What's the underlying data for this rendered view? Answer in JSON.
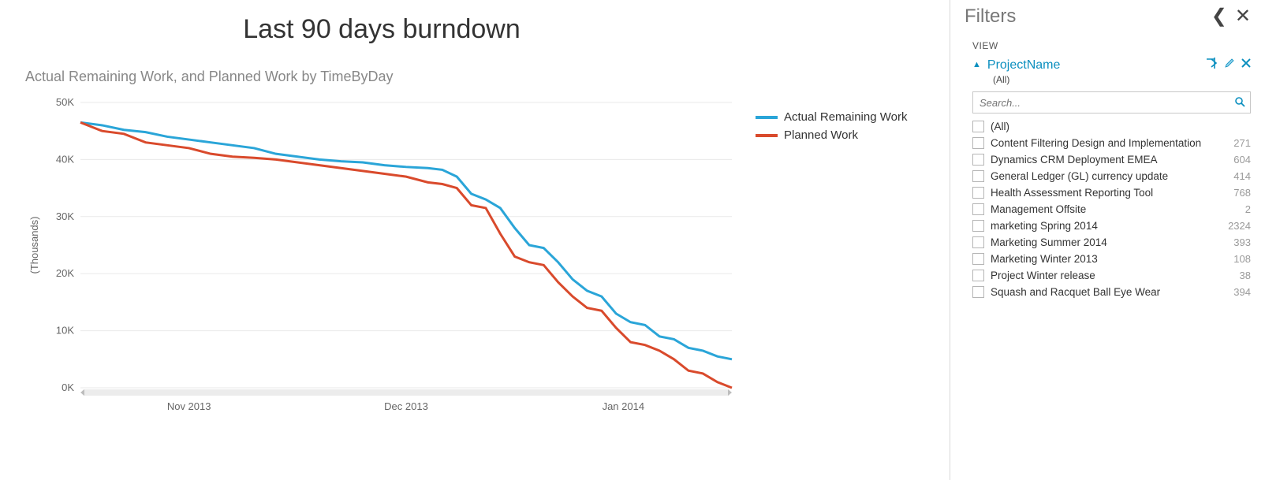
{
  "chart": {
    "type": "line",
    "title": "Last 90 days burndown",
    "subtitle": "Actual Remaining Work, and Planned Work by TimeByDay",
    "y_axis_title": "(Thousands)",
    "ylim": [
      0,
      50
    ],
    "yticks": [
      0,
      10,
      20,
      30,
      40,
      50
    ],
    "ytick_labels": [
      "0K",
      "10K",
      "20K",
      "30K",
      "40K",
      "50K"
    ],
    "x_tick_positions": [
      15,
      45,
      75
    ],
    "x_tick_labels": [
      "Nov 2013",
      "Dec 2013",
      "Jan 2014"
    ],
    "x_domain": [
      0,
      90
    ],
    "grid_color": "#e9e9e9",
    "background_color": "#ffffff",
    "line_width": 3,
    "axis_text_color": "#666666",
    "scrollbar_track_color": "#ececec",
    "series": [
      {
        "name": "Actual Remaining Work",
        "color": "#2aa5d8",
        "x": [
          0,
          3,
          6,
          9,
          12,
          15,
          18,
          21,
          24,
          27,
          30,
          33,
          36,
          39,
          42,
          45,
          48,
          50,
          52,
          54,
          56,
          58,
          60,
          62,
          64,
          66,
          68,
          70,
          72,
          74,
          76,
          78,
          80,
          82,
          84,
          86,
          88,
          90
        ],
        "y": [
          46.5,
          46.0,
          45.2,
          44.8,
          44.0,
          43.5,
          43.0,
          42.5,
          42.0,
          41.0,
          40.5,
          40.0,
          39.7,
          39.5,
          39.0,
          38.7,
          38.5,
          38.2,
          37.0,
          34.0,
          33.0,
          31.5,
          28.0,
          25.0,
          24.5,
          22.0,
          19.0,
          17.0,
          16.0,
          13.0,
          11.5,
          11.0,
          9.0,
          8.5,
          7.0,
          6.5,
          5.5,
          5.0
        ]
      },
      {
        "name": "Planned Work",
        "color": "#d94a2c",
        "x": [
          0,
          3,
          6,
          9,
          12,
          15,
          18,
          21,
          24,
          27,
          30,
          33,
          36,
          39,
          42,
          45,
          48,
          50,
          52,
          54,
          56,
          58,
          60,
          62,
          64,
          66,
          68,
          70,
          72,
          74,
          76,
          78,
          80,
          82,
          84,
          86,
          88,
          90
        ],
        "y": [
          46.5,
          45.0,
          44.5,
          43.0,
          42.5,
          42.0,
          41.0,
          40.5,
          40.3,
          40.0,
          39.5,
          39.0,
          38.5,
          38.0,
          37.5,
          37.0,
          36.0,
          35.7,
          35.0,
          32.0,
          31.5,
          27.0,
          23.0,
          22.0,
          21.5,
          18.5,
          16.0,
          14.0,
          13.5,
          10.5,
          8.0,
          7.5,
          6.5,
          5.0,
          3.0,
          2.5,
          1.0,
          0.0
        ]
      }
    ]
  },
  "legend": {
    "items": [
      "Actual Remaining Work",
      "Planned Work"
    ],
    "colors": [
      "#2aa5d8",
      "#d94a2c"
    ]
  },
  "filters": {
    "panel_title": "Filters",
    "view_label": "VIEW",
    "field_name": "ProjectName",
    "field_summary": "(All)",
    "search_placeholder": "Search...",
    "accent_color": "#0b8fbf",
    "options": [
      {
        "label": "(All)",
        "count": ""
      },
      {
        "label": "Content Filtering Design and Implementation",
        "count": "271"
      },
      {
        "label": "Dynamics CRM Deployment EMEA",
        "count": "604"
      },
      {
        "label": "General Ledger (GL) currency update",
        "count": "414"
      },
      {
        "label": "Health Assessment Reporting Tool",
        "count": "768"
      },
      {
        "label": "Management Offsite",
        "count": "2"
      },
      {
        "label": "marketing Spring 2014",
        "count": "2324"
      },
      {
        "label": "Marketing Summer 2014",
        "count": "393"
      },
      {
        "label": "Marketing Winter 2013",
        "count": "108"
      },
      {
        "label": "Project Winter release",
        "count": "38"
      },
      {
        "label": "Squash and Racquet Ball Eye Wear",
        "count": "394"
      }
    ]
  }
}
